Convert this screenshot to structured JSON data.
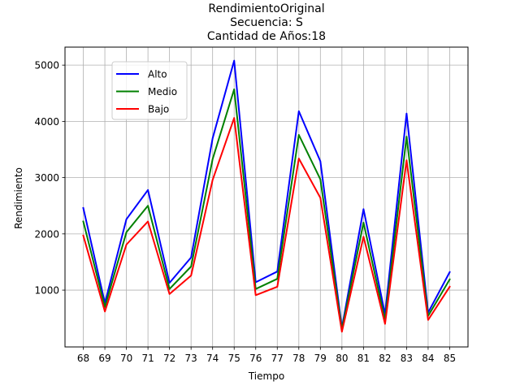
{
  "chart_data": {
    "type": "line",
    "title_lines": [
      "RendimientoOriginal",
      "Secuencia: S",
      "Cantidad de Años:18"
    ],
    "xlabel": "Tiempo",
    "ylabel": "Rendimiento",
    "x": [
      68,
      69,
      70,
      71,
      72,
      73,
      74,
      75,
      76,
      77,
      78,
      79,
      80,
      81,
      82,
      83,
      84,
      85
    ],
    "x_tick_labels": [
      "68",
      "69",
      "70",
      "71",
      "72",
      "73",
      "74",
      "75",
      "76",
      "77",
      "78",
      "79",
      "80",
      "81",
      "82",
      "83",
      "84",
      "85"
    ],
    "xlim": [
      67.15,
      85.85
    ],
    "ylim": [
      -10,
      5320
    ],
    "y_ticks": [
      1000,
      2000,
      3000,
      4000,
      5000
    ],
    "y_tick_labels": [
      "1000",
      "2000",
      "3000",
      "4000",
      "5000"
    ],
    "grid": true,
    "legend_position": "upper-left",
    "series": [
      {
        "name": "Alto",
        "color": "#0000ff",
        "values": [
          2460,
          770,
          2260,
          2780,
          1130,
          1580,
          3700,
          5080,
          1140,
          1330,
          4180,
          3290,
          330,
          2440,
          570,
          4140,
          600,
          1320
        ]
      },
      {
        "name": "Medio",
        "color": "#008000",
        "values": [
          2220,
          700,
          2030,
          2500,
          1020,
          1420,
          3330,
          4570,
          1020,
          1200,
          3760,
          2970,
          300,
          2200,
          470,
          3730,
          540,
          1190
        ]
      },
      {
        "name": "Bajo",
        "color": "#ff0000",
        "values": [
          1970,
          620,
          1810,
          2220,
          930,
          1260,
          2960,
          4060,
          910,
          1060,
          3340,
          2640,
          260,
          1950,
          400,
          3310,
          470,
          1060
        ]
      }
    ]
  }
}
